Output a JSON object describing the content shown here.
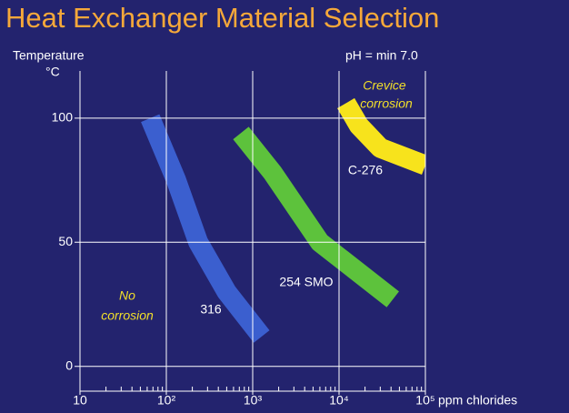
{
  "chart_data": {
    "type": "band",
    "title": "Heat Exchanger Material Selection",
    "y_label": "Temperature",
    "y_unit": "°C",
    "x_label": "ppm chlorides",
    "subtitle": "pH = min 7.0",
    "x_log": true,
    "grid": true,
    "minor_ticks": true,
    "xlim": [
      10,
      100000
    ],
    "ylim": [
      -10,
      119
    ],
    "xticks": [
      10,
      {
        "value": 100,
        "label": "10²"
      },
      {
        "value": 1000,
        "label": "10³"
      },
      {
        "value": 10000,
        "label": "10⁴"
      },
      {
        "value": 100000,
        "label": "10⁵"
      }
    ],
    "yticks": [
      0,
      50,
      100
    ],
    "series": [
      {
        "name": "316",
        "color": "#3b5fcf",
        "x": [
          65,
          130,
          234,
          500,
          1270
        ],
        "values": [
          100,
          75,
          50,
          30,
          12
        ]
      },
      {
        "name": "254 SMO",
        "color": "#5dc23c",
        "x": [
          730,
          1700,
          6000,
          42000
        ],
        "values": [
          94,
          78,
          50,
          27
        ]
      },
      {
        "name": "C-276",
        "color": "#f7e31c",
        "x": [
          12000,
          17000,
          30000,
          100000
        ],
        "values": [
          106,
          97,
          88,
          81
        ]
      }
    ],
    "annotations": [
      "Crevice",
      "corrosion",
      "No",
      "corrosion"
    ]
  }
}
